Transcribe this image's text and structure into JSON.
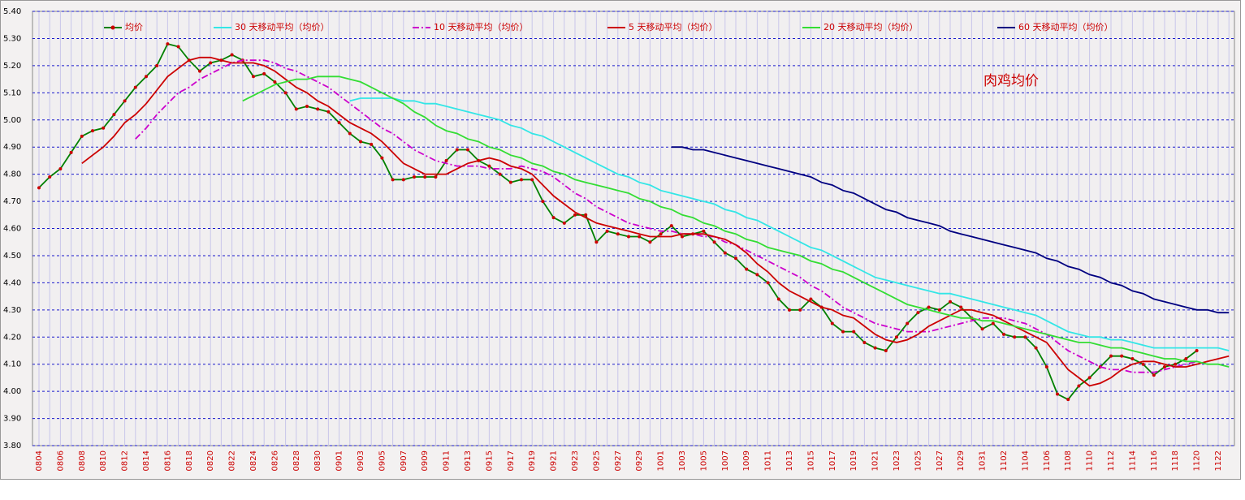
{
  "chart_data": {
    "type": "line",
    "annotation": "肉鸡均价",
    "categories": [
      "0804",
      null,
      "0806",
      null,
      "0808",
      null,
      "0810",
      null,
      "0812",
      null,
      "0814",
      null,
      "0816",
      null,
      "0818",
      null,
      "0820",
      null,
      "0822",
      null,
      "0824",
      null,
      "0826",
      null,
      "0828",
      null,
      "0830",
      null,
      "0901",
      null,
      "0903",
      null,
      "0905",
      null,
      "0907",
      null,
      "0909",
      null,
      "0911",
      null,
      "0913",
      null,
      "0915",
      null,
      "0917",
      null,
      "0919",
      null,
      "0921",
      null,
      "0923",
      null,
      "0925",
      null,
      "0927",
      null,
      "0929",
      null,
      "1001",
      null,
      "1003",
      null,
      "1005",
      null,
      "1007",
      null,
      "1009",
      null,
      "1011",
      null,
      "1013",
      null,
      "1015",
      null,
      "1017",
      null,
      "1019",
      null,
      "1021",
      null,
      "1023",
      null,
      "1025",
      null,
      "1027",
      null,
      "1029",
      null,
      "1031",
      null,
      "1102",
      null,
      "1104",
      null,
      "1106",
      null,
      "1108",
      null,
      "1110",
      null,
      "1112",
      null,
      "1114",
      null,
      "1116",
      null,
      "1118",
      null,
      "1120",
      null,
      "1122",
      null
    ],
    "series": [
      {
        "name": "均价",
        "color": "#008000",
        "marker": "circle",
        "marker_color": "#cc0000",
        "values": [
          4.75,
          4.79,
          4.82,
          4.88,
          4.94,
          4.96,
          4.97,
          5.02,
          5.07,
          5.12,
          5.16,
          5.2,
          5.28,
          5.27,
          5.22,
          5.18,
          5.21,
          5.22,
          5.24,
          5.22,
          5.16,
          5.17,
          5.14,
          5.1,
          5.04,
          5.05,
          5.04,
          5.03,
          4.99,
          4.95,
          4.92,
          4.91,
          4.86,
          4.78,
          4.78,
          4.79,
          4.79,
          4.79,
          4.85,
          4.89,
          4.89,
          4.85,
          4.83,
          4.8,
          4.77,
          4.78,
          4.78,
          4.7,
          4.64,
          4.62,
          4.65,
          4.65,
          4.55,
          4.59,
          4.58,
          4.57,
          4.57,
          4.55,
          4.58,
          4.61,
          4.57,
          4.58,
          4.59,
          4.55,
          4.51,
          4.49,
          4.45,
          4.43,
          4.4,
          4.34,
          4.3,
          4.3,
          4.34,
          4.31,
          4.25,
          4.22,
          4.22,
          4.18,
          4.16,
          4.15,
          4.2,
          4.25,
          4.29,
          4.31,
          4.3,
          4.33,
          4.31,
          4.27,
          4.23,
          4.25,
          4.21,
          4.2,
          4.2,
          4.16,
          4.09,
          3.99,
          3.97,
          4.02,
          4.05,
          4.09,
          4.13,
          4.13,
          4.12,
          4.1,
          4.06,
          4.09,
          4.1,
          4.12,
          4.15,
          null,
          null,
          null
        ]
      },
      {
        "name": "30 天移动平均（均价）",
        "color": "#33e6e6",
        "values": [
          null,
          null,
          null,
          null,
          null,
          null,
          null,
          null,
          null,
          null,
          null,
          null,
          null,
          null,
          null,
          null,
          null,
          null,
          null,
          null,
          null,
          null,
          null,
          null,
          null,
          null,
          null,
          null,
          null,
          5.07,
          5.08,
          5.08,
          5.08,
          5.08,
          5.07,
          5.07,
          5.06,
          5.06,
          5.05,
          5.04,
          5.03,
          5.02,
          5.01,
          5.0,
          4.98,
          4.97,
          4.95,
          4.94,
          4.92,
          4.9,
          4.88,
          4.86,
          4.84,
          4.82,
          4.8,
          4.79,
          4.77,
          4.76,
          4.74,
          4.73,
          4.72,
          4.71,
          4.7,
          4.69,
          4.67,
          4.66,
          4.64,
          4.63,
          4.61,
          4.59,
          4.57,
          4.55,
          4.53,
          4.52,
          4.5,
          4.48,
          4.46,
          4.44,
          4.42,
          4.41,
          4.4,
          4.39,
          4.38,
          4.37,
          4.36,
          4.36,
          4.35,
          4.34,
          4.33,
          4.32,
          4.31,
          4.3,
          4.29,
          4.28,
          4.26,
          4.24,
          4.22,
          4.21,
          4.2,
          4.2,
          4.19,
          4.19,
          4.18,
          4.17,
          4.16,
          4.16,
          4.16,
          4.16,
          4.16,
          4.16,
          4.16,
          4.15
        ]
      },
      {
        "name": "10 天移动平均（均价）",
        "color": "#cc00cc",
        "style": "dash-dot",
        "values": [
          null,
          null,
          null,
          null,
          null,
          null,
          null,
          null,
          null,
          4.93,
          4.97,
          5.02,
          5.06,
          5.1,
          5.12,
          5.15,
          5.17,
          5.19,
          5.21,
          5.22,
          5.22,
          5.22,
          5.21,
          5.19,
          5.18,
          5.16,
          5.14,
          5.12,
          5.09,
          5.06,
          5.03,
          5.0,
          4.97,
          4.95,
          4.92,
          4.89,
          4.87,
          4.85,
          4.84,
          4.83,
          4.83,
          4.83,
          4.82,
          4.82,
          4.82,
          4.83,
          4.82,
          4.81,
          4.79,
          4.76,
          4.73,
          4.71,
          4.68,
          4.66,
          4.64,
          4.62,
          4.61,
          4.6,
          4.59,
          4.59,
          4.58,
          4.58,
          4.57,
          4.57,
          4.55,
          4.54,
          4.52,
          4.5,
          4.48,
          4.46,
          4.44,
          4.42,
          4.39,
          4.37,
          4.34,
          4.31,
          4.29,
          4.27,
          4.25,
          4.24,
          4.23,
          4.22,
          4.22,
          4.22,
          4.23,
          4.24,
          4.25,
          4.26,
          4.27,
          4.27,
          4.27,
          4.26,
          4.25,
          4.23,
          4.21,
          4.18,
          4.15,
          4.13,
          4.11,
          4.09,
          4.08,
          4.08,
          4.07,
          4.07,
          4.07,
          4.08,
          4.09,
          4.1,
          4.11,
          null,
          null,
          null
        ]
      },
      {
        "name": "5 天移动平均（均价）",
        "color": "#cc0000",
        "values": [
          null,
          null,
          null,
          null,
          4.84,
          4.87,
          4.9,
          4.94,
          4.99,
          5.02,
          5.06,
          5.11,
          5.16,
          5.19,
          5.22,
          5.23,
          5.23,
          5.22,
          5.21,
          5.21,
          5.21,
          5.2,
          5.18,
          5.15,
          5.12,
          5.1,
          5.07,
          5.05,
          5.02,
          4.99,
          4.97,
          4.95,
          4.92,
          4.88,
          4.84,
          4.82,
          4.8,
          4.8,
          4.8,
          4.82,
          4.84,
          4.85,
          4.86,
          4.85,
          4.83,
          4.82,
          4.8,
          4.76,
          4.72,
          4.69,
          4.66,
          4.64,
          4.62,
          4.61,
          4.6,
          4.59,
          4.58,
          4.57,
          4.57,
          4.57,
          4.58,
          4.58,
          4.58,
          4.57,
          4.56,
          4.54,
          4.51,
          4.47,
          4.44,
          4.4,
          4.37,
          4.35,
          4.33,
          4.31,
          4.3,
          4.28,
          4.27,
          4.24,
          4.21,
          4.19,
          4.18,
          4.19,
          4.21,
          4.24,
          4.26,
          4.28,
          4.3,
          4.3,
          4.29,
          4.28,
          4.26,
          4.24,
          4.22,
          4.2,
          4.18,
          4.13,
          4.08,
          4.05,
          4.02,
          4.03,
          4.05,
          4.08,
          4.1,
          4.11,
          4.11,
          4.1,
          4.09,
          4.09,
          4.1,
          4.11,
          4.12,
          4.13
        ]
      },
      {
        "name": "20 天移动平均（均价）",
        "color": "#33dd33",
        "values": [
          null,
          null,
          null,
          null,
          null,
          null,
          null,
          null,
          null,
          null,
          null,
          null,
          null,
          null,
          null,
          null,
          null,
          null,
          null,
          5.07,
          5.09,
          5.11,
          5.13,
          5.14,
          5.15,
          5.15,
          5.16,
          5.16,
          5.16,
          5.15,
          5.14,
          5.12,
          5.1,
          5.08,
          5.06,
          5.03,
          5.01,
          4.98,
          4.96,
          4.95,
          4.93,
          4.92,
          4.9,
          4.89,
          4.87,
          4.86,
          4.84,
          4.83,
          4.81,
          4.8,
          4.78,
          4.77,
          4.76,
          4.75,
          4.74,
          4.73,
          4.71,
          4.7,
          4.68,
          4.67,
          4.65,
          4.64,
          4.62,
          4.61,
          4.59,
          4.58,
          4.56,
          4.55,
          4.53,
          4.52,
          4.51,
          4.5,
          4.48,
          4.47,
          4.45,
          4.44,
          4.42,
          4.4,
          4.38,
          4.36,
          4.34,
          4.32,
          4.31,
          4.3,
          4.29,
          4.28,
          4.27,
          4.27,
          4.26,
          4.26,
          4.25,
          4.24,
          4.23,
          4.22,
          4.21,
          4.2,
          4.19,
          4.18,
          4.18,
          4.17,
          4.16,
          4.16,
          4.15,
          4.14,
          4.13,
          4.12,
          4.12,
          4.11,
          4.11,
          4.1,
          4.1,
          4.09
        ]
      },
      {
        "name": "60 天移动平均（均价）",
        "color": "#000080",
        "values": [
          null,
          null,
          null,
          null,
          null,
          null,
          null,
          null,
          null,
          null,
          null,
          null,
          null,
          null,
          null,
          null,
          null,
          null,
          null,
          null,
          null,
          null,
          null,
          null,
          null,
          null,
          null,
          null,
          null,
          null,
          null,
          null,
          null,
          null,
          null,
          null,
          null,
          null,
          null,
          null,
          null,
          null,
          null,
          null,
          null,
          null,
          null,
          null,
          null,
          null,
          null,
          null,
          null,
          null,
          null,
          null,
          null,
          null,
          null,
          4.9,
          4.9,
          4.89,
          4.89,
          4.88,
          4.87,
          4.86,
          4.85,
          4.84,
          4.83,
          4.82,
          4.81,
          4.8,
          4.79,
          4.77,
          4.76,
          4.74,
          4.73,
          4.71,
          4.69,
          4.67,
          4.66,
          4.64,
          4.63,
          4.62,
          4.61,
          4.59,
          4.58,
          4.57,
          4.56,
          4.55,
          4.54,
          4.53,
          4.52,
          4.51,
          4.49,
          4.48,
          4.46,
          4.45,
          4.43,
          4.42,
          4.4,
          4.39,
          4.37,
          4.36,
          4.34,
          4.33,
          4.32,
          4.31,
          4.3,
          4.3,
          4.29,
          4.29
        ]
      }
    ],
    "ylim": [
      3.8,
      5.4
    ],
    "yticks": [
      {
        "value": 3.8,
        "label": "3.80"
      },
      {
        "value": 3.9,
        "label": "3.90"
      },
      {
        "value": 4.0,
        "label": "4.00"
      },
      {
        "value": 4.1,
        "label": "4.10"
      },
      {
        "value": 4.2,
        "label": "4.20"
      },
      {
        "value": 4.3,
        "label": "4.30"
      },
      {
        "value": 4.4,
        "label": "4.40"
      },
      {
        "value": 4.5,
        "label": "4.50"
      },
      {
        "value": 4.6,
        "label": "4.60"
      },
      {
        "value": 4.7,
        "label": "4.70"
      },
      {
        "value": 4.8,
        "label": "4.80"
      },
      {
        "value": 4.9,
        "label": "4.90"
      },
      {
        "value": 5.0,
        "label": "5.00"
      },
      {
        "value": 5.1,
        "label": "5.10"
      },
      {
        "value": 5.2,
        "label": "5.20"
      },
      {
        "value": 5.3,
        "label": "5.30"
      },
      {
        "value": 5.4,
        "label": "5.40"
      }
    ],
    "grid": true,
    "legend": "top"
  }
}
